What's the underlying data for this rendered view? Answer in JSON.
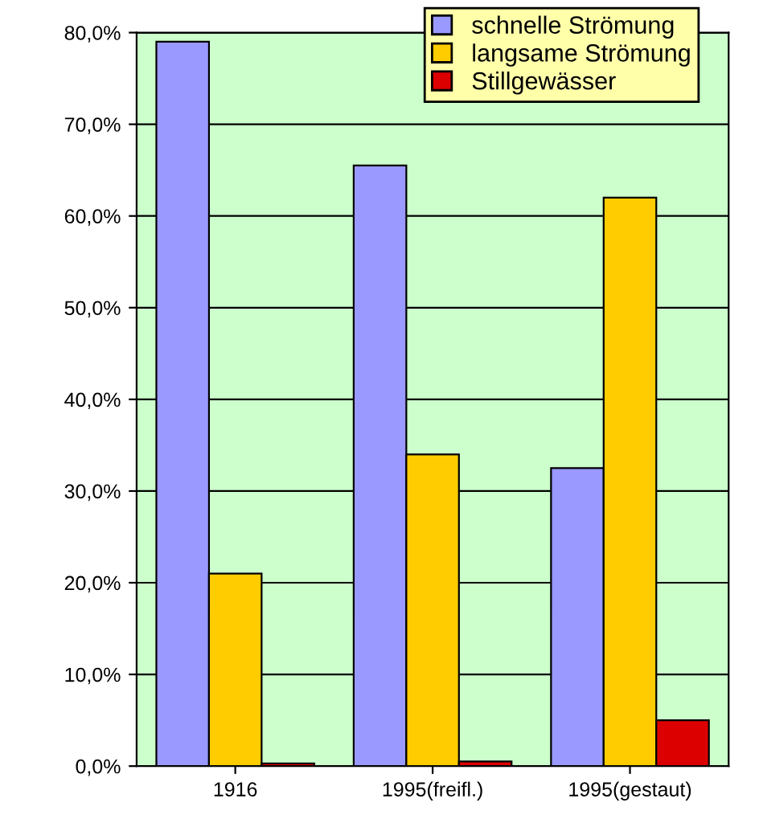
{
  "chart_data": {
    "type": "bar",
    "categories": [
      "1916",
      "1995(freifl.)",
      "1995(gestaut)"
    ],
    "series": [
      {
        "name": "schnelle Strömung",
        "color": "#9999ff",
        "values": [
          79,
          65.5,
          32.5
        ]
      },
      {
        "name": "langsame Strömung",
        "color": "#ffcc00",
        "values": [
          21,
          34,
          62
        ]
      },
      {
        "name": "Stillgewässer",
        "color": "#dd0000",
        "values": [
          0.3,
          0.5,
          5
        ]
      }
    ],
    "ylim": [
      0,
      80
    ],
    "yticks": [
      {
        "value": 0,
        "label": "0,0%"
      },
      {
        "value": 10,
        "label": "10,0%"
      },
      {
        "value": 20,
        "label": "20,0%"
      },
      {
        "value": 30,
        "label": "30,0%"
      },
      {
        "value": 40,
        "label": "40,0%"
      },
      {
        "value": 50,
        "label": "50,0%"
      },
      {
        "value": 60,
        "label": "60,0%"
      },
      {
        "value": 70,
        "label": "70,0%"
      },
      {
        "value": 80,
        "label": "80,0%"
      }
    ],
    "grid": "y",
    "legend": "top right"
  }
}
